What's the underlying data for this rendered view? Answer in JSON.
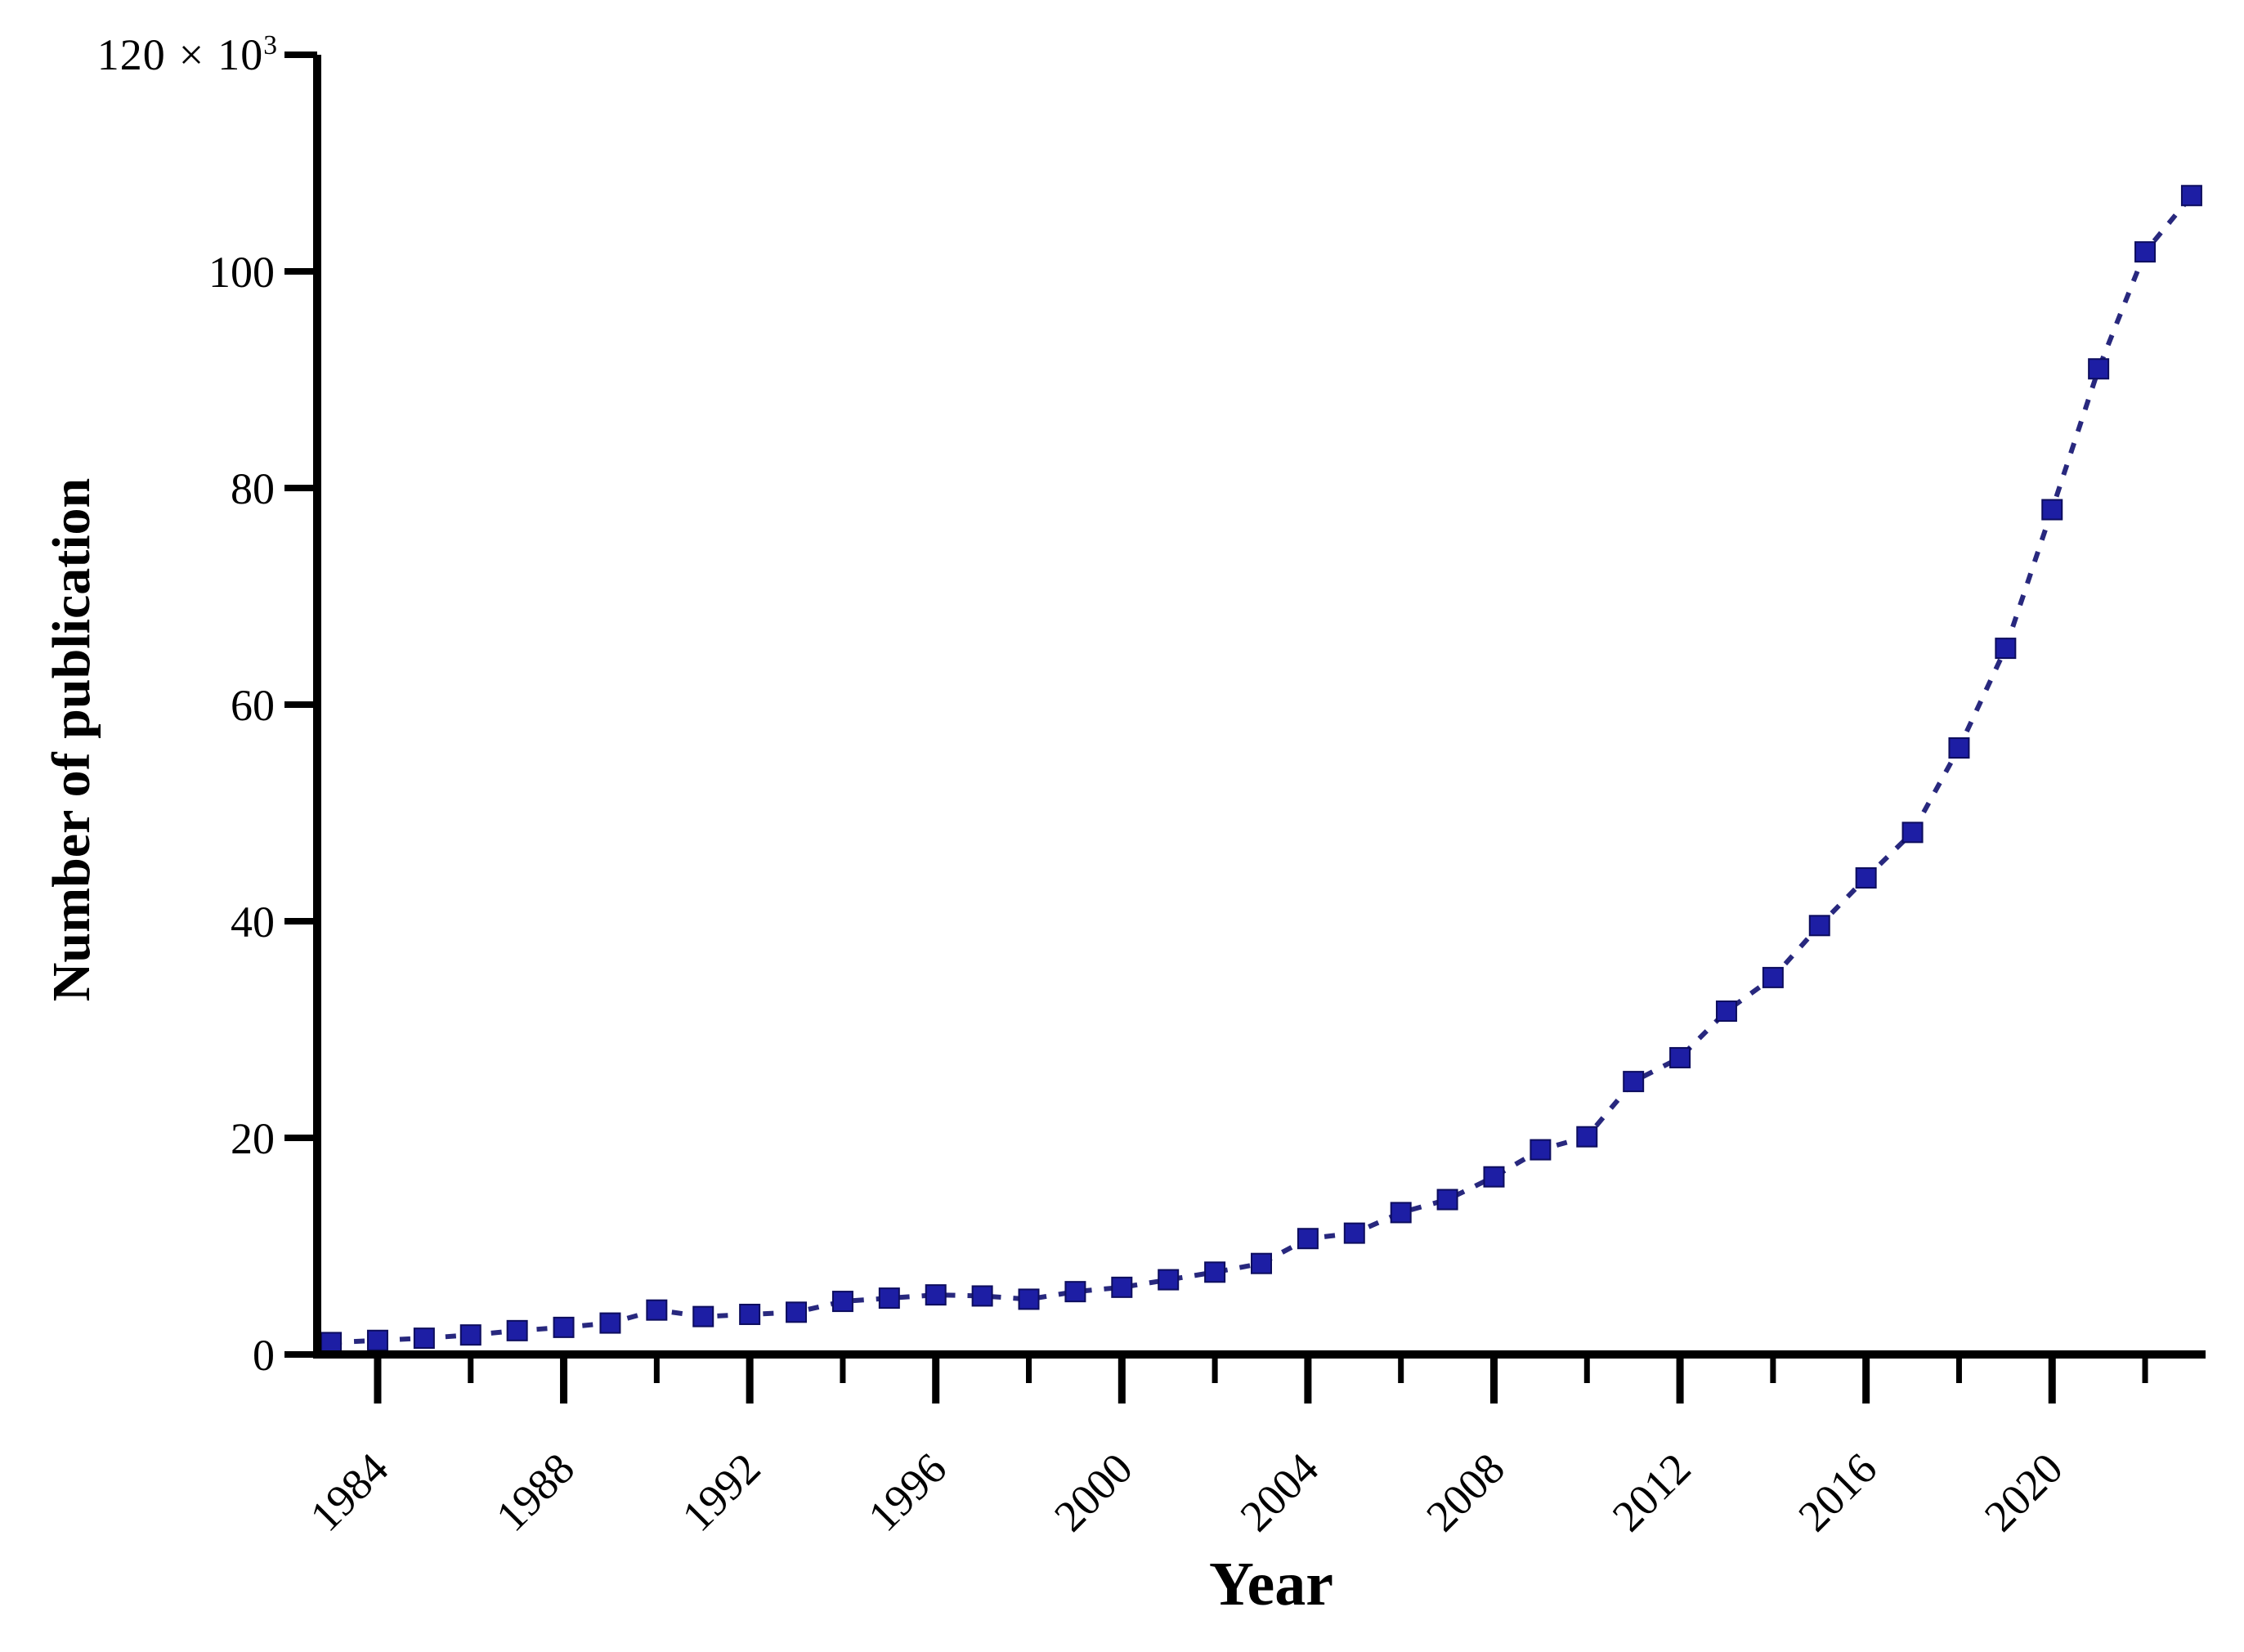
{
  "figure": {
    "background": "#ffffff",
    "y_top_label": {
      "value": "120",
      "times": "×",
      "base": "10",
      "exponent": "3"
    }
  },
  "chart_data": {
    "type": "line",
    "title": "",
    "xlabel": "Year",
    "ylabel": "Number of publication",
    "y_unit_note": "values are in thousands of publications (×10³)",
    "x": [
      1983,
      1984,
      1985,
      1986,
      1987,
      1988,
      1989,
      1990,
      1991,
      1992,
      1993,
      1994,
      1995,
      1996,
      1997,
      1998,
      1999,
      2000,
      2001,
      2002,
      2003,
      2004,
      2005,
      2006,
      2007,
      2008,
      2009,
      2010,
      2011,
      2012,
      2013,
      2014,
      2015,
      2016,
      2017,
      2018,
      2019,
      2020,
      2021,
      2022,
      2023
    ],
    "series": [
      {
        "name": "Number of publication (×10³)",
        "values": [
          1.1,
          1.3,
          1.5,
          1.8,
          2.2,
          2.5,
          2.9,
          4.1,
          3.5,
          3.7,
          3.9,
          4.9,
          5.2,
          5.5,
          5.4,
          5.1,
          5.8,
          6.2,
          6.9,
          7.6,
          8.4,
          10.7,
          11.2,
          13.1,
          14.3,
          16.4,
          18.9,
          20.1,
          25.2,
          27.4,
          31.7,
          34.8,
          39.6,
          44.0,
          48.2,
          56.0,
          65.2,
          78.0,
          91.0,
          101.8,
          107.0
        ]
      }
    ],
    "x_major_ticks": [
      1984,
      1988,
      1992,
      1996,
      2000,
      2004,
      2008,
      2012,
      2016,
      2020
    ],
    "x_major_tick_labels": [
      "1984",
      "1988",
      "1992",
      "1996",
      "2000",
      "2004",
      "2008",
      "2012",
      "2016",
      "2020"
    ],
    "x_minor_ticks": [
      1986,
      1990,
      1994,
      1998,
      2002,
      2006,
      2010,
      2014,
      2018,
      2022
    ],
    "y_ticks": [
      0,
      20,
      40,
      60,
      80,
      100,
      120
    ],
    "y_tick_labels": [
      "0",
      "20",
      "40",
      "60",
      "80",
      "100"
    ],
    "y_top_tick_label": "120 × 10³",
    "xlim": [
      1982.7,
      2023.3
    ],
    "ylim": [
      0,
      120
    ],
    "grid": false,
    "legend": null,
    "marker": "square",
    "line_style": "dotted",
    "colors": {
      "marker_fill": "#1D1EA4",
      "marker_edge": "#0D0D5E",
      "line": "#28287E",
      "axis": "#000000",
      "text": "#000000"
    }
  }
}
